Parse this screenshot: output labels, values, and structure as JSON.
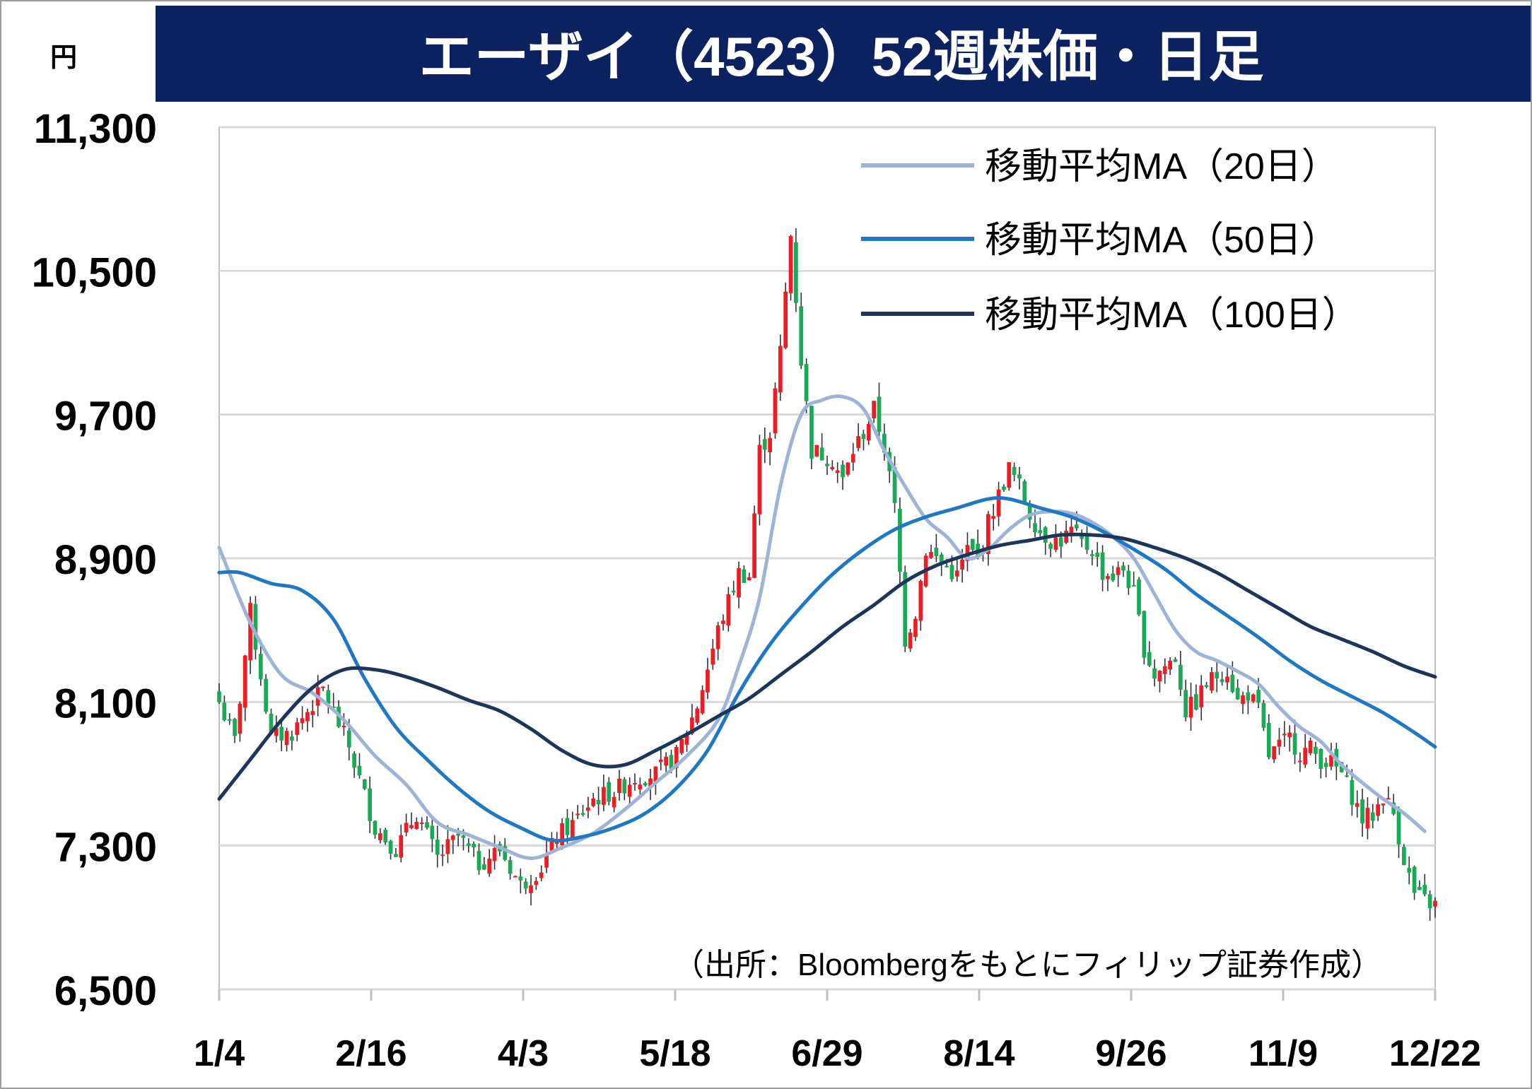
{
  "title": "エーザイ（4523）52週株価・日足",
  "colors": {
    "title_bg": "#0B2160",
    "title_text": "#ffffff",
    "grid": "#d9d9d9",
    "axis": "#bfbfbf",
    "up": "#ee1c25",
    "down": "#1aaa55",
    "ma20": "#9db4d6",
    "ma50": "#1f78c1",
    "ma100": "#1d3558"
  },
  "chart_data": {
    "type": "candlestick",
    "title": "エーザイ（4523）52週株価・日足",
    "ylabel": "円",
    "ylim": [
      6500,
      11300
    ],
    "y_ticks": [
      11300,
      10500,
      9700,
      8900,
      8100,
      7300,
      6500
    ],
    "y_tick_labels": [
      "11,300",
      "10,500",
      "9,700",
      "8,900",
      "8,100",
      "7,300",
      "6,500"
    ],
    "x_tick_labels": [
      "1/4",
      "2/16",
      "4/3",
      "5/18",
      "6/29",
      "8/14",
      "9/26",
      "11/9",
      "12/22"
    ],
    "grid": true,
    "legend_position": "top-right",
    "source_note": "（出所：Bloombergをもとにフィリップ証券作成）",
    "closes": [
      [
        0,
        8100
      ],
      [
        3,
        7880
      ],
      [
        6,
        8600
      ],
      [
        10,
        7900
      ],
      [
        14,
        7930
      ],
      [
        20,
        8170
      ],
      [
        25,
        7850
      ],
      [
        30,
        7400
      ],
      [
        34,
        7280
      ],
      [
        38,
        7480
      ],
      [
        42,
        7230
      ],
      [
        46,
        7350
      ],
      [
        50,
        7200
      ],
      [
        54,
        7280
      ],
      [
        58,
        7080
      ],
      [
        62,
        7180
      ],
      [
        65,
        7350
      ],
      [
        68,
        7420
      ],
      [
        72,
        7560
      ],
      [
        76,
        7600
      ],
      [
        80,
        7680
      ],
      [
        84,
        7700
      ],
      [
        88,
        7800
      ],
      [
        92,
        8080
      ],
      [
        96,
        8500
      ],
      [
        100,
        8820
      ],
      [
        102,
        8800
      ],
      [
        104,
        9500
      ],
      [
        106,
        9600
      ],
      [
        108,
        10050
      ],
      [
        110,
        10700
      ],
      [
        112,
        10000
      ],
      [
        114,
        9500
      ],
      [
        116,
        9480
      ],
      [
        118,
        9450
      ],
      [
        120,
        9330
      ],
      [
        122,
        9500
      ],
      [
        124,
        9600
      ],
      [
        126,
        9730
      ],
      [
        128,
        9520
      ],
      [
        130,
        9180
      ],
      [
        132,
        8450
      ],
      [
        134,
        8600
      ],
      [
        136,
        8950
      ],
      [
        138,
        8900
      ],
      [
        140,
        8850
      ],
      [
        142,
        8800
      ],
      [
        144,
        8950
      ],
      [
        146,
        8900
      ],
      [
        148,
        9100
      ],
      [
        150,
        9250
      ],
      [
        152,
        9400
      ],
      [
        154,
        9300
      ],
      [
        156,
        9150
      ],
      [
        158,
        9050
      ],
      [
        160,
        9000
      ],
      [
        162,
        9000
      ],
      [
        164,
        9050
      ],
      [
        166,
        8980
      ],
      [
        168,
        8950
      ],
      [
        170,
        8820
      ],
      [
        172,
        8800
      ],
      [
        174,
        8840
      ],
      [
        176,
        8700
      ],
      [
        178,
        8400
      ],
      [
        180,
        8250
      ],
      [
        182,
        8300
      ],
      [
        184,
        8350
      ],
      [
        186,
        8050
      ],
      [
        188,
        8100
      ],
      [
        190,
        8200
      ],
      [
        192,
        8250
      ],
      [
        194,
        8280
      ],
      [
        196,
        8100
      ],
      [
        198,
        8150
      ],
      [
        200,
        8050
      ],
      [
        202,
        7800
      ],
      [
        204,
        7850
      ],
      [
        206,
        7900
      ],
      [
        208,
        7820
      ],
      [
        210,
        7840
      ],
      [
        212,
        7780
      ],
      [
        214,
        7760
      ],
      [
        216,
        7700
      ],
      [
        218,
        7580
      ],
      [
        220,
        7450
      ],
      [
        222,
        7470
      ],
      [
        224,
        7580
      ],
      [
        226,
        7480
      ],
      [
        228,
        7230
      ],
      [
        230,
        7030
      ],
      [
        232,
        6990
      ],
      [
        234,
        6970
      ]
    ],
    "series": [
      {
        "name": "移動平均MA（20日）",
        "points": [
          [
            0,
            8960
          ],
          [
            6,
            8540
          ],
          [
            12,
            8250
          ],
          [
            18,
            8150
          ],
          [
            24,
            8000
          ],
          [
            30,
            7800
          ],
          [
            36,
            7640
          ],
          [
            42,
            7430
          ],
          [
            48,
            7360
          ],
          [
            54,
            7290
          ],
          [
            60,
            7230
          ],
          [
            66,
            7290
          ],
          [
            72,
            7370
          ],
          [
            78,
            7500
          ],
          [
            84,
            7650
          ],
          [
            90,
            7800
          ],
          [
            96,
            8000
          ],
          [
            100,
            8300
          ],
          [
            104,
            8680
          ],
          [
            108,
            9300
          ],
          [
            112,
            9700
          ],
          [
            116,
            9780
          ],
          [
            120,
            9800
          ],
          [
            124,
            9730
          ],
          [
            128,
            9500
          ],
          [
            132,
            9300
          ],
          [
            136,
            9120
          ],
          [
            140,
            9020
          ],
          [
            144,
            8900
          ],
          [
            148,
            8950
          ],
          [
            152,
            9060
          ],
          [
            156,
            9140
          ],
          [
            160,
            9160
          ],
          [
            164,
            9150
          ],
          [
            168,
            9100
          ],
          [
            172,
            9020
          ],
          [
            176,
            8900
          ],
          [
            180,
            8700
          ],
          [
            184,
            8500
          ],
          [
            188,
            8380
          ],
          [
            192,
            8330
          ],
          [
            196,
            8270
          ],
          [
            200,
            8200
          ],
          [
            204,
            8070
          ],
          [
            208,
            7960
          ],
          [
            212,
            7880
          ],
          [
            216,
            7750
          ],
          [
            220,
            7650
          ],
          [
            224,
            7560
          ],
          [
            228,
            7480
          ],
          [
            232,
            7380
          ]
        ]
      },
      {
        "name": "移動平均MA（50日）",
        "points": [
          [
            0,
            8820
          ],
          [
            4,
            8820
          ],
          [
            10,
            8760
          ],
          [
            16,
            8720
          ],
          [
            22,
            8560
          ],
          [
            28,
            8230
          ],
          [
            34,
            7960
          ],
          [
            40,
            7780
          ],
          [
            46,
            7620
          ],
          [
            52,
            7490
          ],
          [
            58,
            7400
          ],
          [
            64,
            7330
          ],
          [
            70,
            7350
          ],
          [
            76,
            7400
          ],
          [
            82,
            7480
          ],
          [
            88,
            7620
          ],
          [
            94,
            7830
          ],
          [
            100,
            8150
          ],
          [
            106,
            8420
          ],
          [
            112,
            8630
          ],
          [
            118,
            8810
          ],
          [
            124,
            8950
          ],
          [
            130,
            9060
          ],
          [
            136,
            9130
          ],
          [
            142,
            9180
          ],
          [
            148,
            9230
          ],
          [
            152,
            9230
          ],
          [
            158,
            9180
          ],
          [
            164,
            9130
          ],
          [
            170,
            9050
          ],
          [
            176,
            8950
          ],
          [
            182,
            8840
          ],
          [
            188,
            8700
          ],
          [
            194,
            8580
          ],
          [
            200,
            8460
          ],
          [
            206,
            8330
          ],
          [
            212,
            8220
          ],
          [
            218,
            8130
          ],
          [
            224,
            8040
          ],
          [
            230,
            7930
          ],
          [
            234,
            7850
          ]
        ]
      },
      {
        "name": "移動平均MA（100日）",
        "points": [
          [
            0,
            7560
          ],
          [
            6,
            7780
          ],
          [
            12,
            8000
          ],
          [
            18,
            8180
          ],
          [
            24,
            8280
          ],
          [
            30,
            8280
          ],
          [
            36,
            8240
          ],
          [
            42,
            8180
          ],
          [
            48,
            8110
          ],
          [
            54,
            8050
          ],
          [
            60,
            7950
          ],
          [
            66,
            7830
          ],
          [
            72,
            7750
          ],
          [
            78,
            7750
          ],
          [
            84,
            7830
          ],
          [
            90,
            7920
          ],
          [
            96,
            8020
          ],
          [
            102,
            8120
          ],
          [
            108,
            8250
          ],
          [
            114,
            8380
          ],
          [
            120,
            8520
          ],
          [
            126,
            8640
          ],
          [
            132,
            8770
          ],
          [
            138,
            8860
          ],
          [
            144,
            8920
          ],
          [
            150,
            8970
          ],
          [
            156,
            9000
          ],
          [
            162,
            9030
          ],
          [
            168,
            9030
          ],
          [
            174,
            9010
          ],
          [
            180,
            8960
          ],
          [
            186,
            8900
          ],
          [
            192,
            8820
          ],
          [
            198,
            8720
          ],
          [
            204,
            8620
          ],
          [
            210,
            8520
          ],
          [
            216,
            8450
          ],
          [
            222,
            8380
          ],
          [
            228,
            8300
          ],
          [
            234,
            8240
          ]
        ]
      }
    ]
  }
}
